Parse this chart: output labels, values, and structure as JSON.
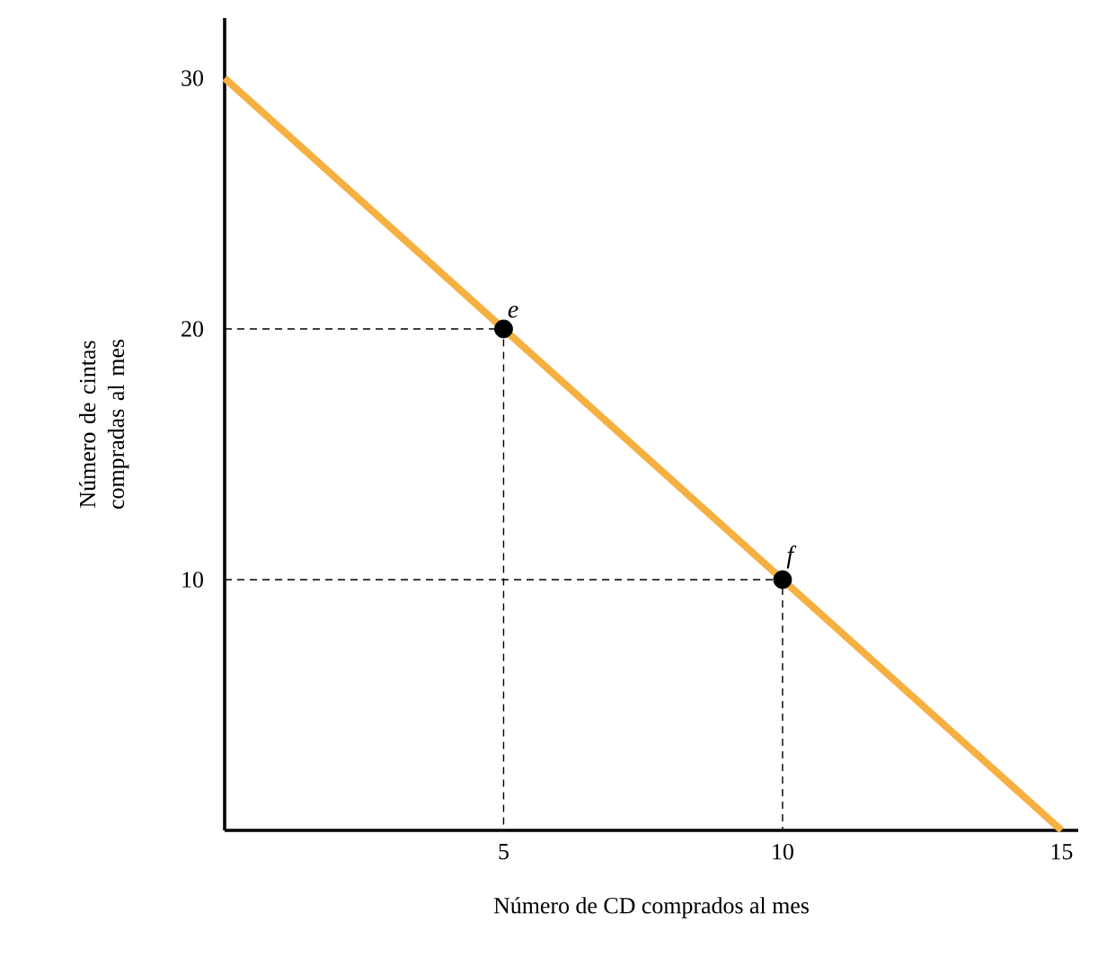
{
  "chart_data": {
    "type": "line",
    "xlabel": "Número de CD comprados al mes",
    "ylabel": "Número de cintas compradas al mes",
    "xlim": [
      0,
      15.3
    ],
    "ylim": [
      0,
      32.4
    ],
    "xticks": [
      5,
      10,
      15
    ],
    "yticks": [
      10,
      20,
      30
    ],
    "series": [
      {
        "color": "#f5b041",
        "x": [
          0,
          15
        ],
        "values": [
          30,
          0
        ],
        "line_style": "solid",
        "marker": "none"
      },
      {
        "color": "#000000",
        "x": [
          0,
          5,
          5
        ],
        "values": [
          20,
          20,
          0
        ],
        "line_style": "dashed",
        "marker": "none"
      },
      {
        "color": "#000000",
        "x": [
          0,
          10,
          10
        ],
        "values": [
          10,
          10,
          0
        ],
        "line_style": "dashed",
        "marker": "none"
      },
      {
        "type": "scatter",
        "color": "#000000",
        "x": [
          5,
          10
        ],
        "values": [
          20,
          10
        ],
        "marker": "circle"
      }
    ],
    "annotations": [
      {
        "text": "e",
        "x": 5,
        "y": 20
      },
      {
        "text": "f",
        "x": 10,
        "y": 10
      }
    ]
  }
}
